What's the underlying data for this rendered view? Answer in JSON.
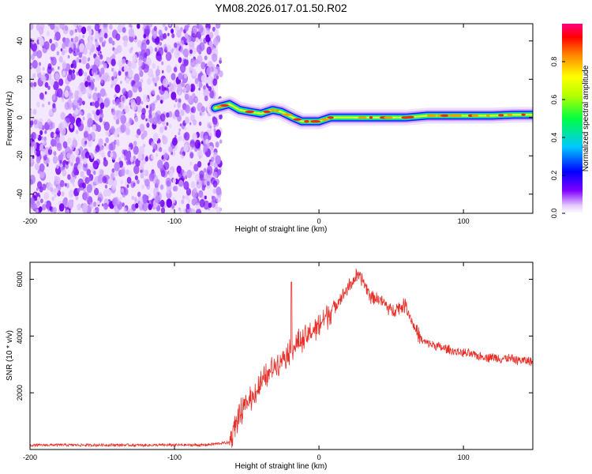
{
  "title": "YM08.2026.017.01.50.R02",
  "chart_data": [
    {
      "type": "heatmap",
      "name": "spectrogram",
      "xlabel": "Height of straight line (km)",
      "ylabel": "Frequency (Hz)",
      "xlim": [
        -200,
        148
      ],
      "ylim": [
        -50,
        49
      ],
      "xticks": [
        -200,
        -100,
        0,
        100
      ],
      "yticks": [
        -40,
        -20,
        0,
        20,
        40
      ],
      "noise_region": {
        "x": [
          -200,
          -70
        ],
        "y": [
          -50,
          49
        ]
      },
      "ridge_x": [
        -72,
        -62,
        -55,
        -48,
        -40,
        -32,
        -26,
        -18,
        -12,
        -5,
        0,
        8,
        15,
        30,
        45,
        60,
        75,
        90,
        105,
        120,
        135,
        148
      ],
      "ridge_y": [
        5,
        7,
        4,
        3,
        2,
        4,
        3,
        0,
        -2,
        -2,
        -2,
        0,
        0,
        0,
        0,
        0,
        1,
        1,
        1,
        1,
        1.5,
        1.5
      ],
      "colorbar": {
        "label": "Normalized spectral amplitude",
        "range": [
          0.0,
          1.0
        ],
        "ticks": [
          "0.0",
          "0.2",
          "0.4",
          "0.6",
          "0.8"
        ]
      }
    },
    {
      "type": "line",
      "name": "snr",
      "xlabel": "Height of straight line (km)",
      "ylabel": "SNR (10 * v/v)",
      "xlim": [
        -200,
        148
      ],
      "ylim": [
        0,
        6600
      ],
      "xticks": [
        -200,
        -100,
        0,
        100
      ],
      "yticks": [
        2000,
        4000,
        6000
      ],
      "color": "#e8302a",
      "series": [
        {
          "name": "SNR",
          "x": [
            -200,
            -180,
            -160,
            -140,
            -120,
            -100,
            -80,
            -62,
            -58,
            -50,
            -40,
            -30,
            -22,
            -10,
            0,
            10,
            20,
            26,
            30,
            36,
            42,
            50,
            60,
            66,
            72,
            90,
            110,
            130,
            148
          ],
          "y": [
            150,
            160,
            155,
            160,
            150,
            160,
            155,
            250,
            900,
            1600,
            2300,
            3000,
            3400,
            3900,
            4400,
            5000,
            5700,
            6100,
            6000,
            5400,
            5300,
            4900,
            5100,
            4300,
            3800,
            3500,
            3300,
            3200,
            3100
          ]
        }
      ],
      "spike": {
        "x": -19,
        "y": 5900
      }
    }
  ]
}
